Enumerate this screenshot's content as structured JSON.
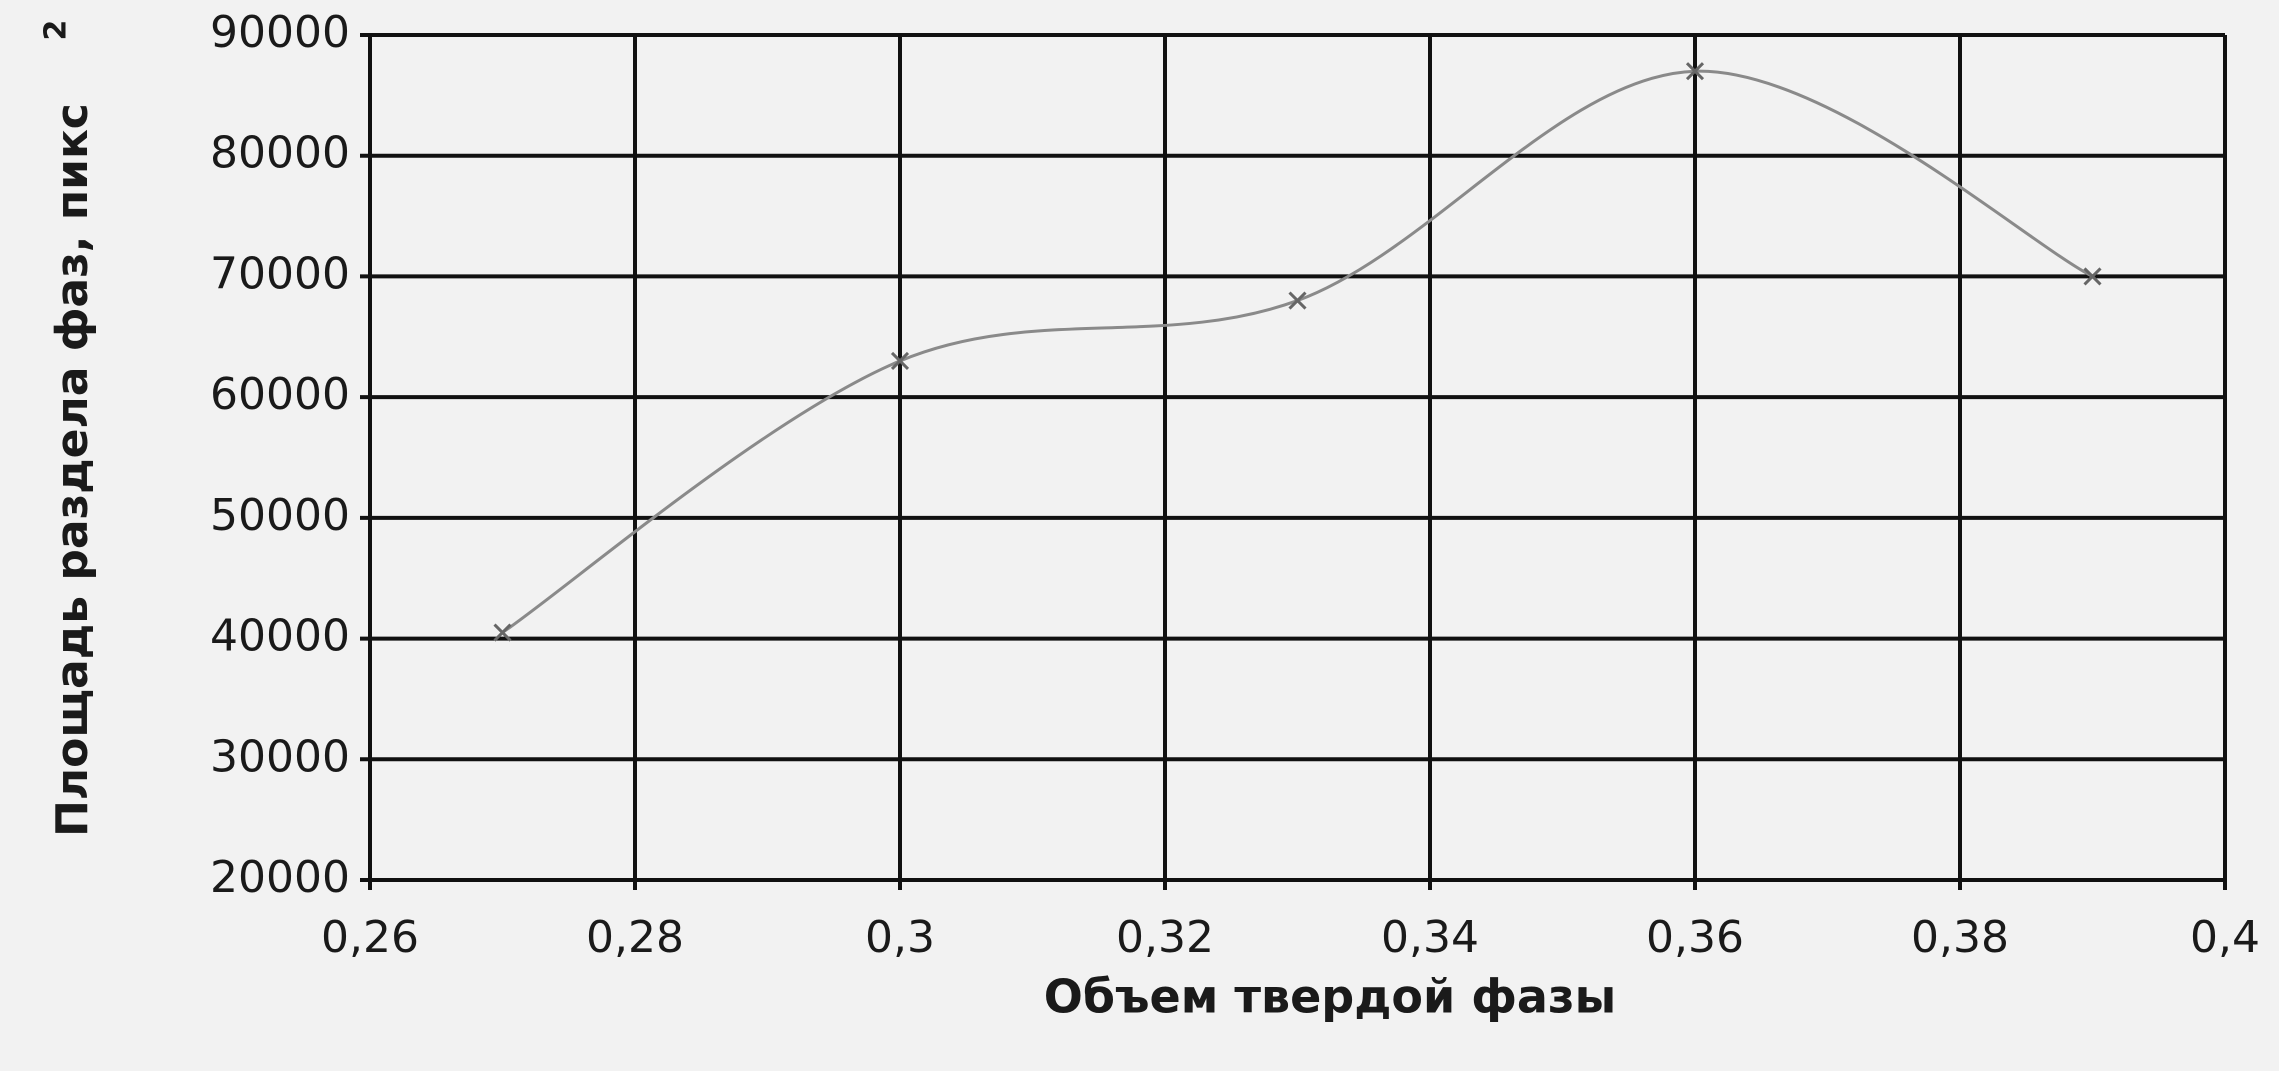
{
  "chart_data": {
    "type": "line",
    "xlabel": "Объем твердой фазы",
    "ylabel": "Площадь раздела фаз, пикс",
    "ylabel_superscript": "2",
    "x": [
      0.27,
      0.3,
      0.33,
      0.36,
      0.39
    ],
    "series": [
      {
        "color": "#8a8a8a",
        "values": [
          40500,
          63000,
          68000,
          87000,
          70000
        ]
      }
    ],
    "xlim": [
      0.26,
      0.4
    ],
    "xticks": [
      {
        "value": 0.26,
        "label": "0,26"
      },
      {
        "value": 0.28,
        "label": "0,28"
      },
      {
        "value": 0.3,
        "label": "0,3"
      },
      {
        "value": 0.32,
        "label": "0,32"
      },
      {
        "value": 0.34,
        "label": "0,34"
      },
      {
        "value": 0.36,
        "label": "0,36"
      },
      {
        "value": 0.38,
        "label": "0,38"
      },
      {
        "value": 0.4,
        "label": "0,4"
      }
    ],
    "ylim": [
      20000,
      90000
    ],
    "yticks": [
      20000,
      30000,
      40000,
      50000,
      60000,
      70000,
      80000,
      90000
    ],
    "grid": true
  }
}
